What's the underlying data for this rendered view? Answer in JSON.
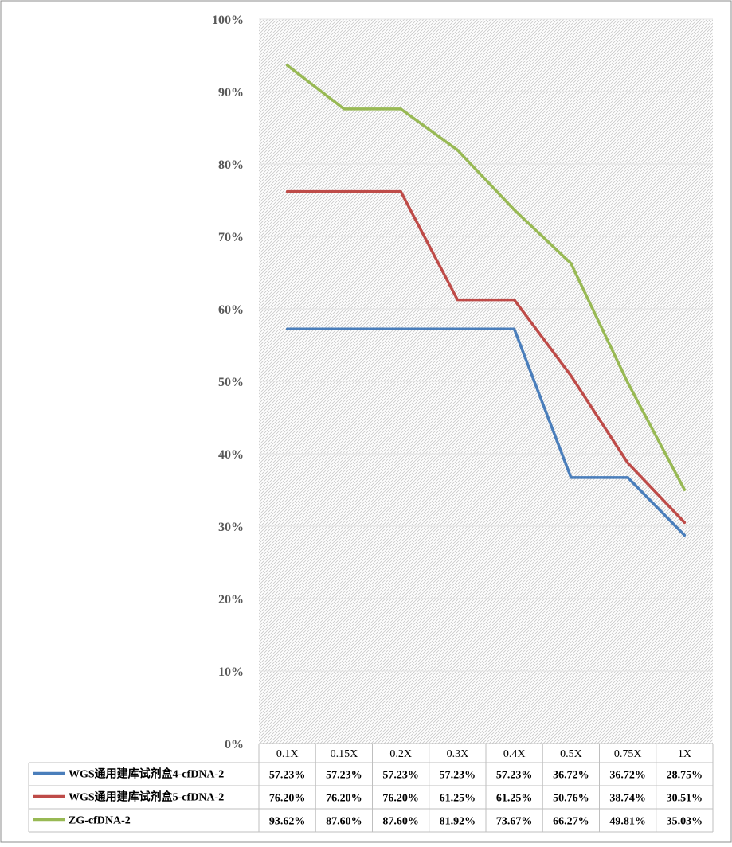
{
  "chart_data": {
    "type": "line",
    "categories": [
      "0.1X",
      "0.15X",
      "0.2X",
      "0.3X",
      "0.4X",
      "0.5X",
      "0.75X",
      "1X"
    ],
    "series": [
      {
        "name": "WGS通用建库试剂盒4-cfDNA-2",
        "color": "#4a7ebb",
        "values": [
          57.23,
          57.23,
          57.23,
          57.23,
          57.23,
          36.72,
          36.72,
          28.75
        ],
        "labels": [
          "57.23%",
          "57.23%",
          "57.23%",
          "57.23%",
          "57.23%",
          "36.72%",
          "36.72%",
          "28.75%"
        ]
      },
      {
        "name": "WGS通用建库试剂盒5-cfDNA-2",
        "color": "#be4b48",
        "values": [
          76.2,
          76.2,
          76.2,
          61.25,
          61.25,
          50.76,
          38.74,
          30.51
        ],
        "labels": [
          "76.20%",
          "76.20%",
          "76.20%",
          "61.25%",
          "61.25%",
          "50.76%",
          "38.74%",
          "30.51%"
        ]
      },
      {
        "name": "ZG-cfDNA-2",
        "color": "#98b954",
        "values": [
          93.62,
          87.6,
          87.6,
          81.92,
          73.67,
          66.27,
          49.81,
          35.03
        ],
        "labels": [
          "93.62%",
          "87.60%",
          "87.60%",
          "81.92%",
          "73.67%",
          "66.27%",
          "49.81%",
          "35.03%"
        ]
      }
    ],
    "y_ticks": [
      "0%",
      "10%",
      "20%",
      "30%",
      "40%",
      "50%",
      "60%",
      "70%",
      "80%",
      "90%",
      "100%"
    ],
    "ylim": [
      0,
      100
    ],
    "grid": true,
    "data_table": true,
    "legend": "data-table-left"
  }
}
